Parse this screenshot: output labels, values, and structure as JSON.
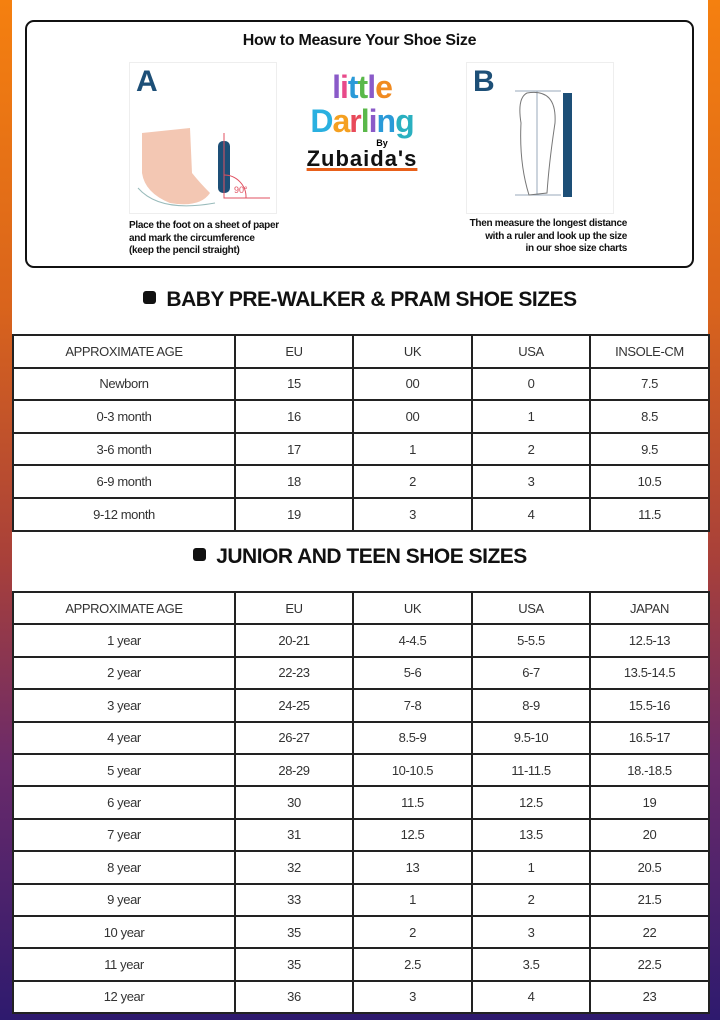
{
  "howto": {
    "title": "How to Measure Your Shoe Size",
    "step_a_letter": "A",
    "step_a_caption": [
      "Place the foot on a sheet of paper",
      "and mark the circumference",
      "(keep the pencil straight)"
    ],
    "angle_label": "90°",
    "step_b_letter": "B",
    "step_b_caption": [
      "Then measure the longest distance",
      "with a ruler and look up the size",
      "in our shoe size charts"
    ]
  },
  "logo": {
    "line1": "little",
    "line2": "Darling",
    "by": "By",
    "brand": "Zubaida's"
  },
  "baby": {
    "heading": "BABY PRE-WALKER & PRAM SHOE SIZES",
    "columns": [
      "APPROXIMATE AGE",
      "EU",
      "UK",
      "USA",
      "INSOLE-CM"
    ],
    "rows": [
      [
        "Newborn",
        "15",
        "00",
        "0",
        "7.5"
      ],
      [
        "0-3 month",
        "16",
        "00",
        "1",
        "8.5"
      ],
      [
        "3-6 month",
        "17",
        "1",
        "2",
        "9.5"
      ],
      [
        "6-9 month",
        "18",
        "2",
        "3",
        "10.5"
      ],
      [
        "9-12 month",
        "19",
        "3",
        "4",
        "11.5"
      ]
    ]
  },
  "junior": {
    "heading": "JUNIOR AND TEEN SHOE SIZES",
    "columns": [
      "APPROXIMATE AGE",
      "EU",
      "UK",
      "USA",
      "JAPAN"
    ],
    "rows": [
      [
        "1 year",
        "20-21",
        "4-4.5",
        "5-5.5",
        "12.5-13"
      ],
      [
        "2 year",
        "22-23",
        "5-6",
        "6-7",
        "13.5-14.5"
      ],
      [
        "3 year",
        "24-25",
        "7-8",
        "8-9",
        "15.5-16"
      ],
      [
        "4 year",
        "26-27",
        "8.5-9",
        "9.5-10",
        "16.5-17"
      ],
      [
        "5 year",
        "28-29",
        "10-10.5",
        "11-11.5",
        "18.-18.5"
      ],
      [
        "6 year",
        "30",
        "11.5",
        "12.5",
        "19"
      ],
      [
        "7 year",
        "31",
        "12.5",
        "13.5",
        "20"
      ],
      [
        "8 year",
        "32",
        "13",
        "1",
        "20.5"
      ],
      [
        "9 year",
        "33",
        "1",
        "2",
        "21.5"
      ],
      [
        "10 year",
        "35",
        "2",
        "3",
        "22"
      ],
      [
        "11 year",
        "35",
        "2.5",
        "3.5",
        "22.5"
      ],
      [
        "12 year",
        "36",
        "3",
        "4",
        "23"
      ]
    ]
  }
}
